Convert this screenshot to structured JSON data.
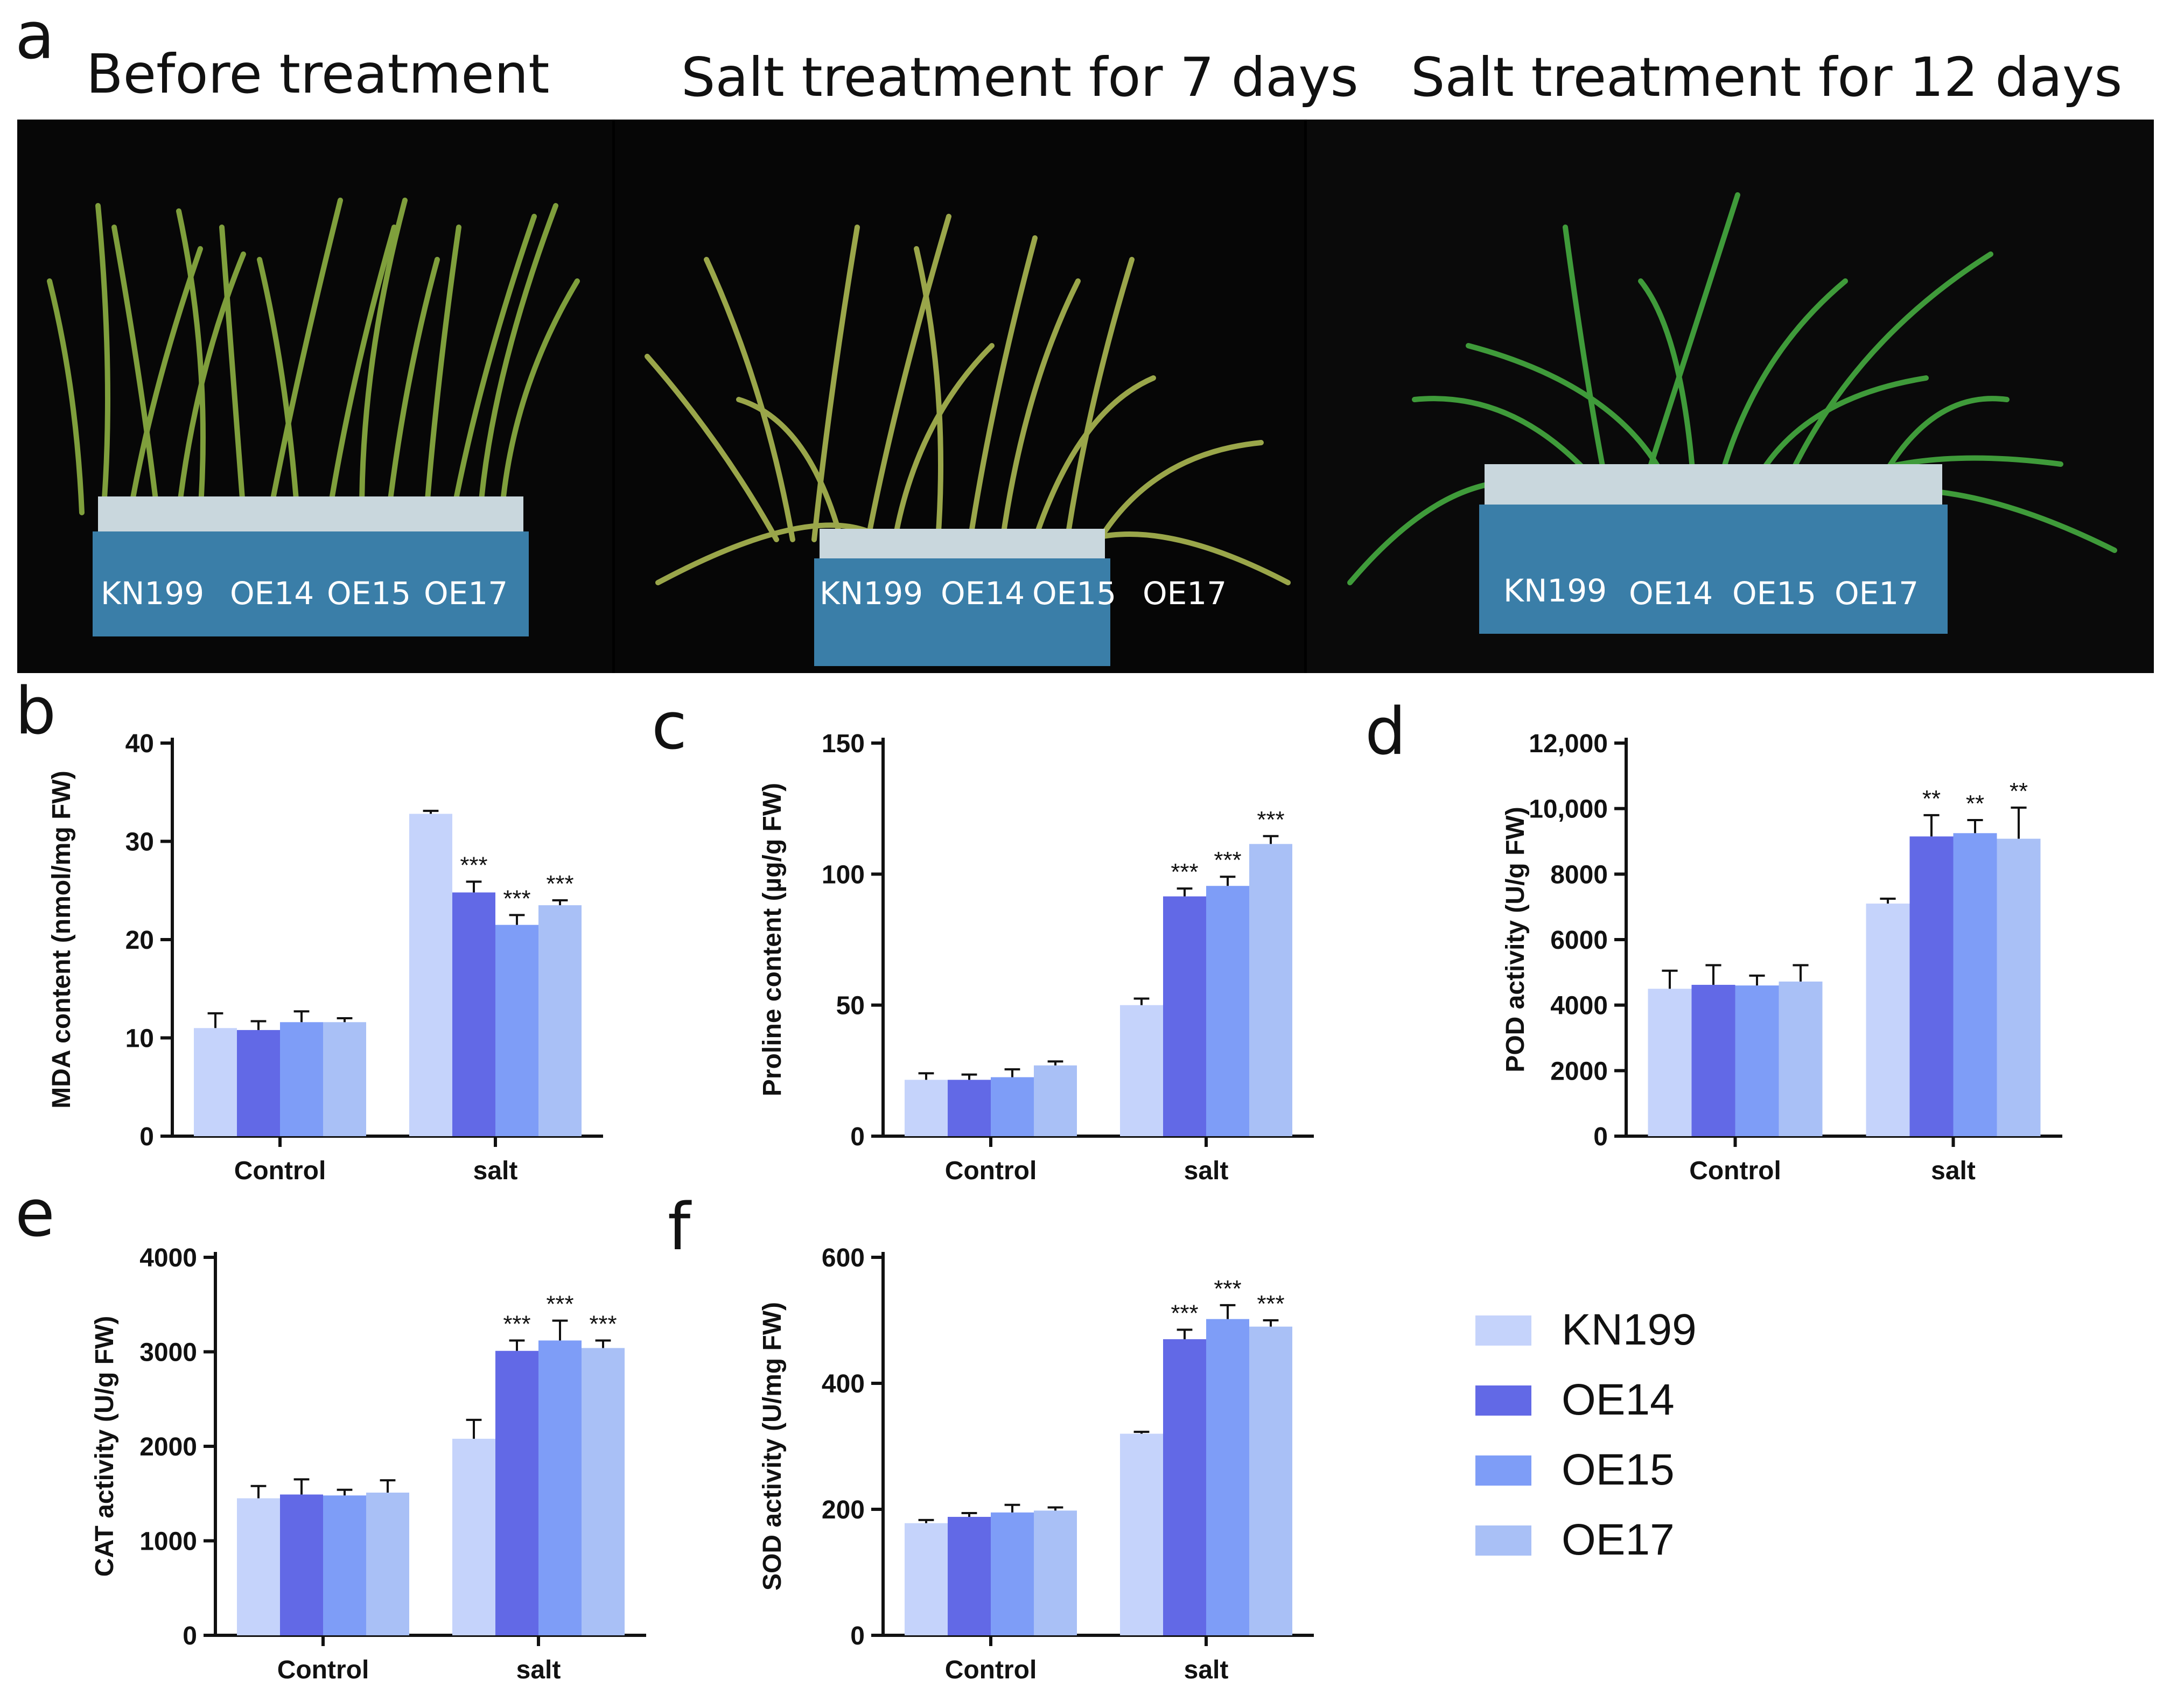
{
  "panel_letters": {
    "a": "a",
    "b": "b",
    "c": "c",
    "d": "d",
    "e": "e",
    "f": "f"
  },
  "photos": [
    {
      "title": "Before treatment",
      "labels": [
        "KN199",
        "OE14",
        "OE15",
        "OE17"
      ]
    },
    {
      "title": "Salt treatment for 7 days",
      "labels": [
        "KN199",
        "OE14",
        "OE15",
        "OE17"
      ]
    },
    {
      "title": "Salt treatment for 12 days",
      "labels": [
        "KN199",
        "OE14",
        "OE15",
        "OE17"
      ]
    }
  ],
  "colors": {
    "KN199": "#c5d3fb",
    "OE14": "#6269e6",
    "OE15": "#7e9df7",
    "OE17": "#a9c0f6"
  },
  "legend": [
    "KN199",
    "OE14",
    "OE15",
    "OE17"
  ],
  "chart_data": [
    {
      "panel": "b",
      "type": "bar",
      "ylabel": "MDA content (nmol/mg FW)",
      "categories": [
        "Control",
        "salt"
      ],
      "ylim": [
        0,
        40
      ],
      "yticks": [
        0,
        10,
        20,
        30,
        40
      ],
      "ytick_labels": [
        "0",
        "10",
        "20",
        "30",
        "40"
      ],
      "series": [
        {
          "name": "KN199",
          "values": [
            11,
            32.8
          ],
          "errors": [
            1.5,
            0.3
          ],
          "sig": [
            "",
            ""
          ]
        },
        {
          "name": "OE14",
          "values": [
            10.8,
            24.8
          ],
          "errors": [
            0.9,
            1.1
          ],
          "sig": [
            "",
            "***"
          ]
        },
        {
          "name": "OE15",
          "values": [
            11.6,
            21.5
          ],
          "errors": [
            1.1,
            1.0
          ],
          "sig": [
            "",
            "***"
          ]
        },
        {
          "name": "OE17",
          "values": [
            11.6,
            23.5
          ],
          "errors": [
            0.4,
            0.5
          ],
          "sig": [
            "",
            "***"
          ]
        }
      ]
    },
    {
      "panel": "c",
      "type": "bar",
      "ylabel": "Proline content (µg/g FW)",
      "categories": [
        "Control",
        "salt"
      ],
      "ylim": [
        0,
        150
      ],
      "yticks": [
        0,
        50,
        100,
        150
      ],
      "ytick_labels": [
        "0",
        "50",
        "100",
        "150"
      ],
      "series": [
        {
          "name": "KN199",
          "values": [
            21.5,
            50
          ],
          "errors": [
            2.5,
            2.5
          ],
          "sig": [
            "",
            ""
          ]
        },
        {
          "name": "OE14",
          "values": [
            21.5,
            91.5
          ],
          "errors": [
            2.0,
            3.0
          ],
          "sig": [
            "",
            "***"
          ]
        },
        {
          "name": "OE15",
          "values": [
            22.5,
            95.5
          ],
          "errors": [
            3.0,
            3.5
          ],
          "sig": [
            "",
            "***"
          ]
        },
        {
          "name": "OE17",
          "values": [
            27,
            111.5
          ],
          "errors": [
            1.5,
            3.0
          ],
          "sig": [
            "",
            "***"
          ]
        }
      ]
    },
    {
      "panel": "d",
      "type": "bar",
      "ylabel": "POD activity (U/g FW)",
      "categories": [
        "Control",
        "salt"
      ],
      "ylim": [
        0,
        12000
      ],
      "yticks": [
        0,
        2000,
        4000,
        6000,
        8000,
        10000,
        12000
      ],
      "ytick_labels": [
        "0",
        "2000",
        "4000",
        "6000",
        "8000",
        "10,000",
        "12,000"
      ],
      "series": [
        {
          "name": "KN199",
          "values": [
            4500,
            7100
          ],
          "errors": [
            550,
            150
          ],
          "sig": [
            "",
            ""
          ]
        },
        {
          "name": "OE14",
          "values": [
            4620,
            9150
          ],
          "errors": [
            600,
            650
          ],
          "sig": [
            "",
            "**"
          ]
        },
        {
          "name": "OE15",
          "values": [
            4600,
            9250
          ],
          "errors": [
            300,
            400
          ],
          "sig": [
            "",
            "**"
          ]
        },
        {
          "name": "OE17",
          "values": [
            4720,
            9080
          ],
          "errors": [
            500,
            950
          ],
          "sig": [
            "",
            "**"
          ]
        }
      ]
    },
    {
      "panel": "e",
      "type": "bar",
      "ylabel": "CAT activity (U/g FW)",
      "categories": [
        "Control",
        "salt"
      ],
      "ylim": [
        0,
        4000
      ],
      "yticks": [
        0,
        1000,
        2000,
        3000,
        4000
      ],
      "ytick_labels": [
        "0",
        "1000",
        "2000",
        "3000",
        "4000"
      ],
      "series": [
        {
          "name": "KN199",
          "values": [
            1450,
            2080
          ],
          "errors": [
            130,
            200
          ],
          "sig": [
            "",
            ""
          ]
        },
        {
          "name": "OE14",
          "values": [
            1490,
            3010
          ],
          "errors": [
            160,
            110
          ],
          "sig": [
            "",
            "***"
          ]
        },
        {
          "name": "OE15",
          "values": [
            1480,
            3120
          ],
          "errors": [
            60,
            210
          ],
          "sig": [
            "",
            "***"
          ]
        },
        {
          "name": "OE17",
          "values": [
            1510,
            3040
          ],
          "errors": [
            130,
            80
          ],
          "sig": [
            "",
            "***"
          ]
        }
      ]
    },
    {
      "panel": "f",
      "type": "bar",
      "ylabel": "SOD activity (U/mg FW)",
      "categories": [
        "Control",
        "salt"
      ],
      "ylim": [
        0,
        600
      ],
      "yticks": [
        0,
        200,
        400,
        600
      ],
      "ytick_labels": [
        "0",
        "200",
        "400",
        "600"
      ],
      "series": [
        {
          "name": "KN199",
          "values": [
            178,
            320
          ],
          "errors": [
            5,
            3
          ],
          "sig": [
            "",
            ""
          ]
        },
        {
          "name": "OE14",
          "values": [
            188,
            470
          ],
          "errors": [
            6,
            15
          ],
          "sig": [
            "",
            "***"
          ]
        },
        {
          "name": "OE15",
          "values": [
            195,
            502
          ],
          "errors": [
            12,
            22
          ],
          "sig": [
            "",
            "***"
          ]
        },
        {
          "name": "OE17",
          "values": [
            198,
            490
          ],
          "errors": [
            5,
            10
          ],
          "sig": [
            "",
            "***"
          ]
        }
      ]
    }
  ]
}
